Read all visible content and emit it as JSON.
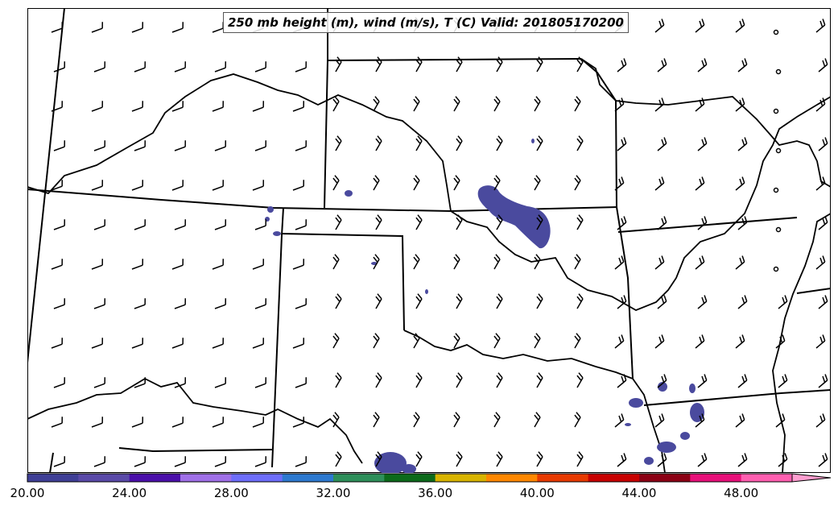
{
  "map": {
    "title": "250 mb height (m), wind (m/s), T (C) Valid: 201805170200",
    "shaded_field_color": "#4a4a9e",
    "barb_color": "#000000",
    "boundary_color": "#000000"
  },
  "colorbar": {
    "tick_labels": [
      "20.00",
      "24.00",
      "28.00",
      "32.00",
      "36.00",
      "40.00",
      "44.00",
      "48.00"
    ],
    "colors": [
      "#3f3f96",
      "#5a4aa8",
      "#4b0faa",
      "#a070e8",
      "#6e6efa",
      "#2e7ad0",
      "#2e8f5a",
      "#0c6a1a",
      "#d8b400",
      "#ff8800",
      "#e83a00",
      "#c80000",
      "#8c0014",
      "#e8107a",
      "#ff5fb0",
      "#ff9ed0"
    ]
  }
}
